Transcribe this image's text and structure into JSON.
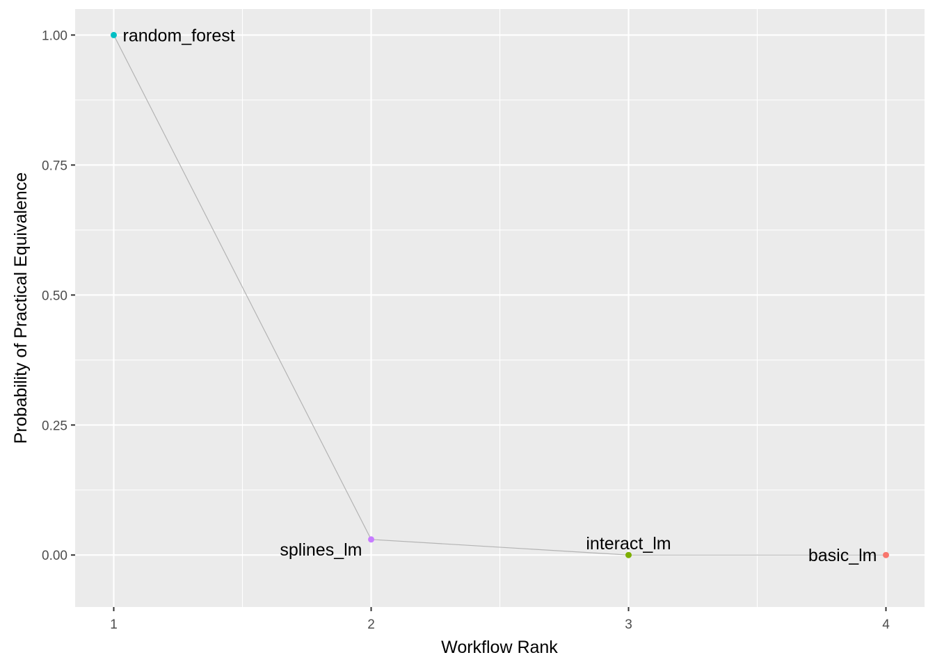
{
  "chart_data": {
    "type": "line",
    "title": "",
    "xlabel": "Workflow Rank",
    "ylabel": "Probability of Practical Equivalence",
    "xlim": [
      0.85,
      4.15
    ],
    "ylim": [
      -0.1,
      1.05
    ],
    "x_ticks": [
      1,
      2,
      3,
      4
    ],
    "x_tick_labels": [
      "1",
      "2",
      "3",
      "4"
    ],
    "y_ticks": [
      0,
      0.25,
      0.5,
      0.75,
      1.0
    ],
    "y_tick_labels": [
      "0.00",
      "0.25",
      "0.50",
      "0.75",
      "1.00"
    ],
    "grid": true,
    "legend": "none",
    "line_color": "#b3b3b3",
    "points": [
      {
        "x": 1,
        "y": 1.0,
        "label": "random_forest",
        "color": "#00BFC4",
        "label_anchor": "start",
        "label_dy": 0.5
      },
      {
        "x": 2,
        "y": 0.03,
        "label": "splines_lm",
        "color": "#C77CFF",
        "label_anchor": "end",
        "label_dy": 1.3
      },
      {
        "x": 3,
        "y": 0.0,
        "label": "interact_lm",
        "color": "#7CAE00",
        "label_anchor": "middle",
        "label_dy": -0.45
      },
      {
        "x": 4,
        "y": 0.0,
        "label": "basic_lm",
        "color": "#F8766D",
        "label_anchor": "end",
        "label_dy": 0.5
      }
    ]
  }
}
